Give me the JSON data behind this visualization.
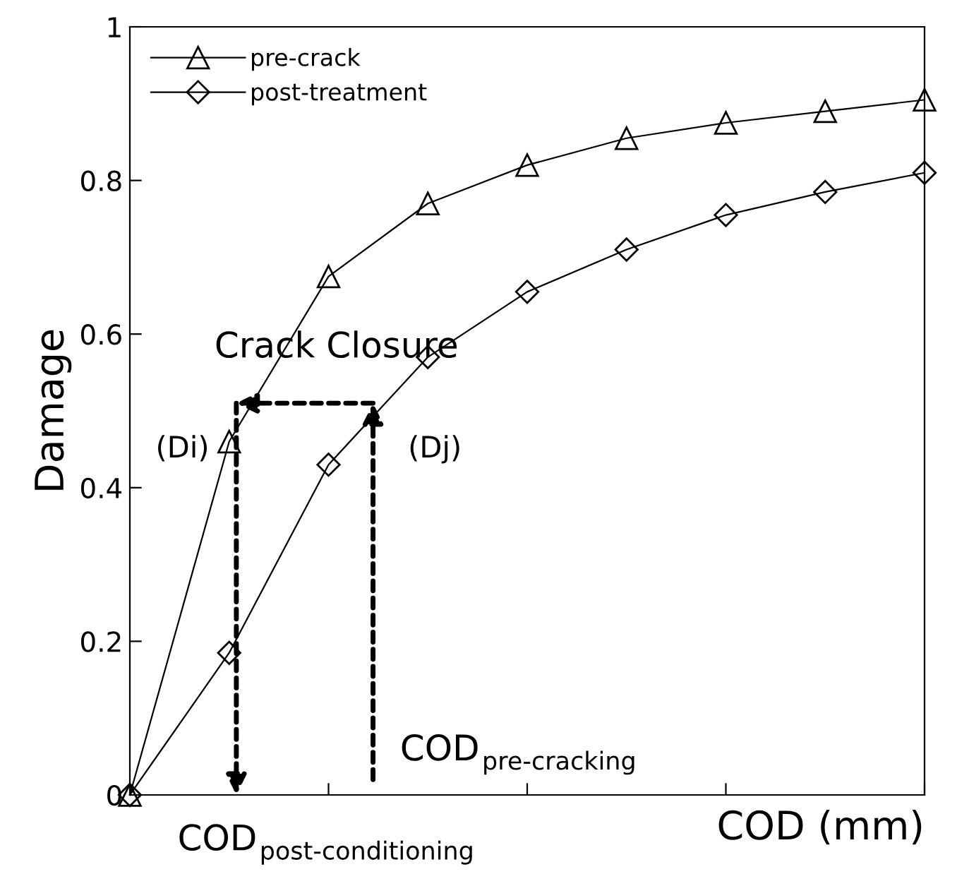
{
  "chart_data": {
    "type": "line",
    "ylabel": "Damage",
    "xlabel": "COD (mm)",
    "categories": [
      null,
      null,
      null,
      null,
      null,
      null,
      null,
      null,
      null
    ],
    "series": [
      {
        "name": "pre-crack",
        "color": "#000000",
        "marker": "triangle",
        "values": [
          0,
          0.46,
          0.675,
          0.77,
          0.82,
          0.855,
          0.875,
          0.89,
          0.905
        ]
      },
      {
        "name": "post-treatment",
        "color": "#000000",
        "marker": "diamond",
        "values": [
          0,
          0.185,
          0.43,
          0.57,
          0.655,
          0.71,
          0.755,
          0.785,
          0.81
        ]
      }
    ],
    "ylim": [
      0,
      1
    ],
    "yticks": [
      0,
      0.2,
      0.4,
      0.6,
      0.8,
      1
    ],
    "annotations": [
      "Crack Closure",
      "(Di)",
      "(Dj)",
      "COD$_{pre-cracking}$",
      "COD$_{post-conditioning}$"
    ],
    "legend": "top left",
    "grid": false,
    "line_style": "solid"
  }
}
